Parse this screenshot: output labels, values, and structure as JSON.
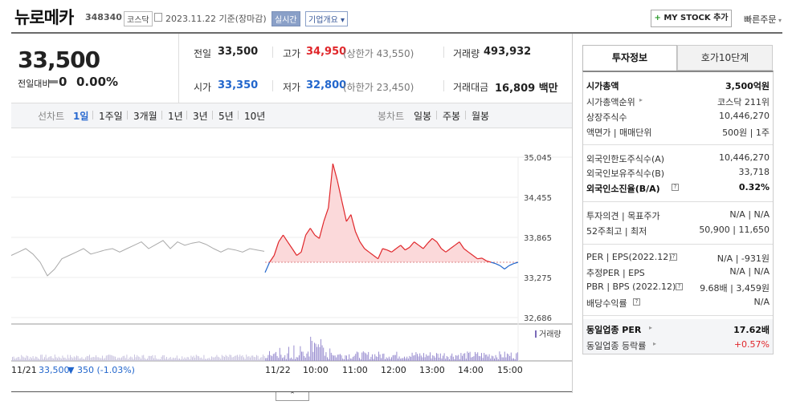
{
  "header": {
    "title": "뉴로메카",
    "code": "348340",
    "market": "코스닥",
    "date": "2023.11.22 기준(장마감)",
    "realtime": "실시간",
    "company_info": "기업개요",
    "mystock_plus": "+",
    "mystock_label": "MY STOCK 추가",
    "quick_order": "빠른주문"
  },
  "price": {
    "current": "33,500",
    "change_label": "전일대비",
    "change_value": "0",
    "change_pct": "0.00%"
  },
  "quote": {
    "prev_label": "전일",
    "prev": "33,500",
    "high_label": "고가",
    "high": "34,950",
    "upper_limit": "(상한가 43,550)",
    "volume_label": "거래량",
    "volume": "493,932",
    "open_label": "시가",
    "open": "33,350",
    "low_label": "저가",
    "low": "32,800",
    "lower_limit": "(하한가 23,450)",
    "amount_label": "거래대금",
    "amount": "16,809 백만"
  },
  "period_bar": {
    "line_label": "선차트",
    "periods": [
      "1일",
      "1주일",
      "3개월",
      "1년",
      "3년",
      "5년",
      "10년"
    ],
    "active": "1일",
    "candle_label": "봉차트",
    "candles": [
      "일봉",
      "주봉",
      "월봉"
    ]
  },
  "chart_data": {
    "type": "line",
    "yticks": [
      "35,045",
      "34,455",
      "33,865",
      "33,275",
      "32,686"
    ],
    "xticks": [
      "11/22",
      "10:00",
      "11:00",
      "12:00",
      "13:00",
      "14:00",
      "15:00"
    ],
    "prev_day_label": "11/21",
    "prev_close_value": "33,500",
    "prev_change": "▼ 350 (-1.03%)",
    "volume_legend": "거래량",
    "baseline": 33500,
    "ylim": [
      32686,
      35045
    ],
    "prev_day_series": [
      33600,
      33650,
      33700,
      33620,
      33500,
      33300,
      33400,
      33550,
      33600,
      33650,
      33700,
      33620,
      33650,
      33680,
      33700,
      33650,
      33700,
      33750,
      33800,
      33700,
      33760,
      33820,
      33700,
      33800,
      33750,
      33780,
      33800,
      33760,
      33700,
      33650,
      33700,
      33680,
      33650,
      33700,
      33680,
      33660
    ],
    "today_series": [
      33350,
      33500,
      33600,
      33800,
      33900,
      33800,
      33700,
      33600,
      33650,
      33900,
      34000,
      33900,
      33850,
      34100,
      34300,
      34950,
      34700,
      34400,
      34100,
      34200,
      33950,
      33800,
      33700,
      33650,
      33600,
      33550,
      33700,
      33680,
      33650,
      33700,
      33750,
      33680,
      33720,
      33800,
      33750,
      33700,
      33780,
      33850,
      33800,
      33700,
      33650,
      33700,
      33750,
      33800,
      33700,
      33650,
      33600,
      33550,
      33560,
      33520,
      33500,
      33480,
      33450,
      33400,
      33450,
      33480,
      33500
    ]
  },
  "right_panel": {
    "tab_invest": "투자정보",
    "tab_orderbook": "호가10단계",
    "rows": [
      {
        "l": "시가총액",
        "r": "3,500억원",
        "bold": true
      },
      {
        "l": "시가총액순위",
        "r": "코스닥 211위"
      },
      {
        "l": "상장주식수",
        "r": "10,446,270"
      },
      {
        "l": "액면가 | 매매단위",
        "r": "500원 | 1주"
      },
      {
        "l": "외국인한도주식수(A)",
        "r": "10,446,270"
      },
      {
        "l": "외국인보유주식수(B)",
        "r": "33,718"
      },
      {
        "l": "외국인소진율(B/A)",
        "r": "0.32%",
        "bold": true
      },
      {
        "l": "투자의견 | 목표주가",
        "r": "N/A | N/A"
      },
      {
        "l": "52주최고 | 최저",
        "r": "50,900 | 11,650"
      },
      {
        "l": "PER | EPS(2022.12)",
        "r": "N/A | -931원"
      },
      {
        "l": "추정PER | EPS",
        "r": "N/A | N/A"
      },
      {
        "l": "PBR | BPS (2022.12)",
        "r": "9.68배 | 3,459원"
      },
      {
        "l": "배당수익률",
        "r": "N/A"
      },
      {
        "l": "동일업종 PER",
        "r": "17.62배",
        "bold": true
      },
      {
        "l": "동일업종 등락률",
        "r": "+0.57%"
      }
    ],
    "question_mark": "?",
    "arrow": "▸"
  },
  "collapse_symbol": "⌃"
}
